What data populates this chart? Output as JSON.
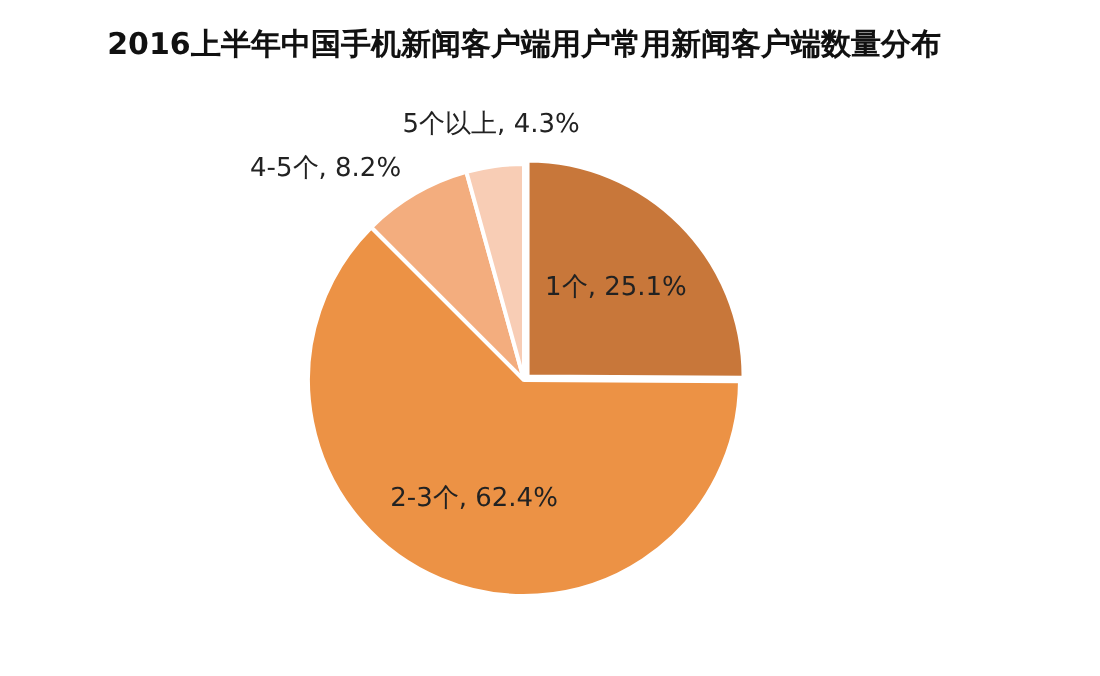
{
  "chart_data": {
    "type": "pie",
    "title": "2016上半年中国手机新闻客户端用户常用新闻客户端数量分布",
    "categories": [
      "1个",
      "2-3个",
      "4-5个",
      "5个以上"
    ],
    "values": [
      25.1,
      62.4,
      8.2,
      4.3
    ],
    "value_labels": [
      "25.1%",
      "62.4%",
      "8.2%",
      "4.3%"
    ],
    "colors": [
      "#c8773a",
      "#ec9245",
      "#f3ad7e",
      "#f8cdb5"
    ],
    "legend": false
  }
}
